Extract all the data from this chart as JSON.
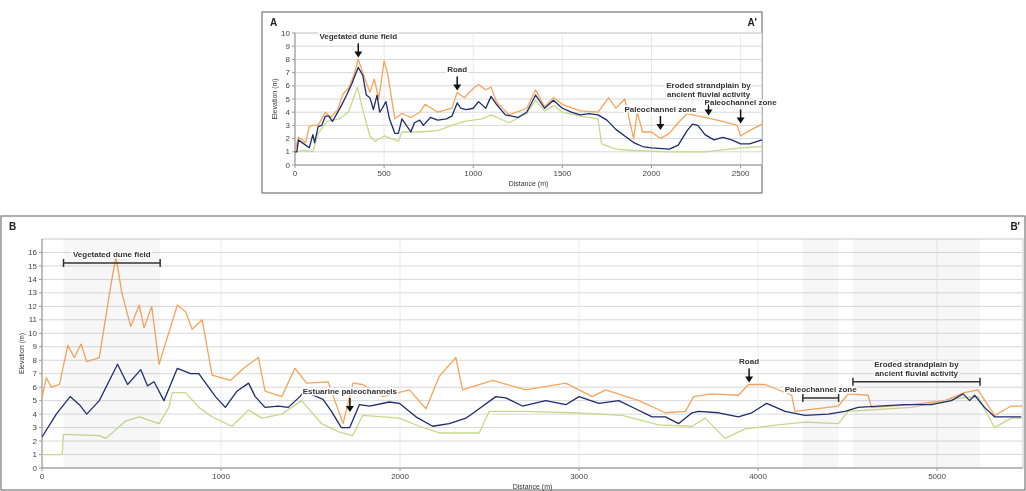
{
  "chart_data": [
    {
      "type": "line",
      "xlabel": "Distance (m)",
      "ylabel": "Elevation (m)",
      "xlim": [
        0,
        2620
      ],
      "xticks": [
        0,
        500,
        1000,
        1500,
        2000,
        2500
      ],
      "ylim": [
        0,
        10
      ],
      "yticks": [
        0,
        1,
        2,
        3,
        4,
        5,
        6,
        7,
        8,
        9,
        10
      ],
      "grid": true,
      "series": [
        {
          "color": "#f5a55a",
          "x": [
            0,
            20,
            60,
            80,
            100,
            130,
            170,
            200,
            240,
            270,
            300,
            330,
            355,
            380,
            420,
            445,
            470,
            500,
            520,
            560,
            600,
            650,
            700,
            730,
            800,
            880,
            910,
            950,
            1000,
            1030,
            1070,
            1100,
            1130,
            1200,
            1300,
            1350,
            1400,
            1450,
            1500,
            1600,
            1700,
            1760,
            1800,
            1850,
            1900,
            1920,
            1950,
            2000,
            2050,
            2100,
            2150,
            2200,
            2300,
            2400,
            2480,
            2500,
            2550,
            2620
          ],
          "values": [
            1.1,
            2.1,
            1.7,
            2.9,
            3.0,
            3.0,
            4.0,
            3.6,
            4.2,
            5.4,
            5.8,
            6.8,
            8.0,
            7.0,
            5.5,
            6.5,
            5.0,
            7.9,
            6.9,
            3.5,
            3.9,
            3.6,
            4.0,
            4.6,
            4.0,
            4.3,
            5.5,
            5.1,
            5.8,
            6.1,
            5.7,
            5.9,
            4.8,
            3.8,
            4.3,
            5.7,
            4.4,
            5.1,
            4.6,
            4.1,
            4.0,
            5.1,
            4.3,
            5.0,
            2.0,
            4.0,
            2.5,
            2.5,
            2.0,
            2.4,
            3.2,
            3.9,
            3.6,
            3.3,
            3.0,
            2.2,
            2.6,
            3.1
          ]
        },
        {
          "color": "#c5d98a",
          "x": [
            0,
            50,
            100,
            130,
            180,
            250,
            300,
            350,
            380,
            420,
            450,
            500,
            560,
            580,
            600,
            700,
            800,
            880,
            950,
            1050,
            1100,
            1200,
            1300,
            1350,
            1400,
            1450,
            1500,
            1600,
            1700,
            1720,
            1800,
            1900,
            2100,
            2300,
            2500,
            2620
          ],
          "values": [
            1.0,
            1.1,
            1.0,
            2.4,
            3.3,
            3.5,
            4.0,
            5.9,
            4.2,
            2.2,
            1.8,
            2.2,
            1.9,
            1.8,
            2.5,
            2.5,
            2.6,
            3.0,
            3.3,
            3.5,
            3.8,
            3.2,
            3.9,
            4.9,
            4.1,
            4.5,
            4.0,
            3.7,
            3.5,
            1.6,
            1.2,
            1.1,
            1.0,
            1.0,
            1.3,
            1.4
          ]
        },
        {
          "color": "#1f2a6e",
          "x": [
            0,
            10,
            20,
            50,
            80,
            100,
            110,
            130,
            150,
            170,
            190,
            210,
            240,
            260,
            290,
            320,
            355,
            380,
            400,
            420,
            440,
            460,
            475,
            490,
            510,
            530,
            560,
            580,
            600,
            625,
            650,
            670,
            700,
            720,
            760,
            800,
            850,
            880,
            910,
            930,
            960,
            1000,
            1030,
            1070,
            1100,
            1130,
            1180,
            1250,
            1300,
            1350,
            1400,
            1450,
            1500,
            1550,
            1600,
            1650,
            1700,
            1750,
            1800,
            1850,
            1900,
            1950,
            2000,
            2100,
            2150,
            2200,
            2230,
            2260,
            2300,
            2350,
            2400,
            2450,
            2500,
            2550,
            2620
          ],
          "values": [
            1.0,
            1.0,
            1.9,
            1.6,
            1.3,
            2.3,
            1.7,
            2.9,
            3.0,
            3.7,
            3.7,
            3.3,
            4.0,
            4.5,
            5.3,
            6.2,
            7.4,
            6.8,
            5.3,
            5.1,
            4.2,
            5.3,
            4.0,
            4.3,
            4.8,
            3.5,
            2.4,
            2.4,
            3.5,
            3.0,
            2.5,
            3.2,
            3.4,
            3.0,
            3.6,
            3.4,
            3.5,
            3.7,
            4.7,
            4.3,
            4.2,
            4.3,
            4.8,
            4.3,
            5.2,
            4.6,
            3.8,
            3.6,
            4.0,
            5.3,
            4.3,
            4.9,
            4.3,
            4.0,
            3.8,
            3.9,
            3.8,
            3.4,
            2.7,
            2.2,
            1.7,
            1.4,
            1.3,
            1.2,
            1.5,
            2.6,
            3.1,
            3.0,
            2.3,
            1.9,
            2.1,
            1.9,
            1.6,
            1.6,
            1.9
          ]
        }
      ],
      "annotations": [
        "A",
        "A'",
        {
          "text": "Vegetated dune field",
          "x": 355,
          "y": 8.0
        },
        {
          "text": "Road",
          "x": 910,
          "y": 5.5
        },
        {
          "text": "Paleochannel zone",
          "x": 2050,
          "y": 2.5
        },
        {
          "text": "Eroded strandplain by ancient fluvial activity",
          "x": 2320,
          "y": 3.6
        },
        {
          "text": "Paleochannel zone",
          "x": 2500,
          "y": 3.0
        }
      ]
    },
    {
      "type": "line",
      "xlabel": "Distance (m)",
      "ylabel": "Elevation (m)",
      "xlim": [
        0,
        5480
      ],
      "xticks": [
        0,
        1000,
        2000,
        3000,
        4000,
        5000
      ],
      "ylim": [
        0,
        17
      ],
      "yticks": [
        0,
        1,
        2,
        3,
        4,
        5,
        6,
        7,
        8,
        9,
        10,
        11,
        12,
        13,
        14,
        15,
        16
      ],
      "grid": true,
      "series": [
        {
          "color": "#f5a55a",
          "x": [
            0,
            24,
            52,
            98,
            144,
            181,
            218,
            250,
            320,
            385,
            413,
            446,
            496,
            543,
            570,
            613,
            654,
            756,
            802,
            839,
            895,
            950,
            1052,
            1135,
            1209,
            1246,
            1339,
            1413,
            1478,
            1598,
            1682,
            1737,
            1791,
            1903,
            2052,
            2145,
            2219,
            2312,
            2349,
            2517,
            2703,
            2926,
            3074,
            3148,
            3334,
            3482,
            3594,
            3640,
            3742,
            3890,
            3946,
            4039,
            4188,
            4206,
            4448,
            4504,
            4615,
            4634,
            4857,
            5043,
            5154,
            5228,
            5321,
            5414,
            5479
          ],
          "values": [
            5.2,
            6.7,
            6.0,
            6.2,
            9.1,
            8.2,
            9.2,
            7.9,
            8.2,
            13.6,
            15.7,
            13.0,
            10.5,
            12.1,
            10.4,
            12.0,
            7.7,
            12.1,
            11.6,
            10.3,
            11.0,
            6.9,
            6.5,
            7.5,
            8.2,
            5.7,
            5.3,
            7.4,
            6.3,
            6.4,
            3.3,
            6.3,
            6.2,
            5.3,
            5.8,
            4.4,
            6.8,
            8.2,
            5.8,
            6.5,
            5.8,
            6.3,
            5.3,
            5.8,
            5.0,
            4.1,
            4.2,
            5.3,
            5.5,
            5.4,
            6.2,
            6.2,
            5.4,
            4.2,
            4.6,
            5.5,
            5.4,
            4.5,
            4.7,
            5.0,
            5.6,
            5.8,
            3.9,
            4.6,
            4.6
          ]
        },
        {
          "color": "#c5d98a",
          "x": [
            0,
            113,
            120,
            320,
            357,
            469,
            543,
            654,
            709,
            728,
            802,
            876,
            950,
            1061,
            1154,
            1228,
            1339,
            1450,
            1561,
            1654,
            1735,
            1791,
            1996,
            2108,
            2219,
            2442,
            2498,
            2703,
            2963,
            3241,
            3445,
            3631,
            3705,
            3816,
            3928,
            4113,
            4262,
            4448,
            4504,
            4857,
            5136,
            5228,
            5321,
            5414,
            5479
          ],
          "values": [
            1.0,
            1.0,
            2.5,
            2.4,
            2.2,
            3.5,
            3.8,
            3.3,
            4.5,
            5.6,
            5.6,
            4.5,
            3.8,
            3.1,
            4.3,
            3.7,
            4.0,
            5.0,
            3.3,
            2.7,
            2.4,
            3.9,
            3.7,
            3.1,
            2.6,
            2.6,
            4.2,
            4.2,
            4.1,
            3.9,
            3.2,
            3.1,
            3.7,
            2.2,
            2.9,
            3.2,
            3.4,
            3.3,
            4.2,
            4.5,
            5.2,
            5.3,
            3.0,
            3.7,
            3.7
          ]
        },
        {
          "color": "#1f2a6e",
          "x": [
            0,
            80,
            157,
            209,
            250,
            320,
            422,
            478,
            552,
            589,
            626,
            681,
            756,
            830,
            876,
            969,
            1024,
            1089,
            1154,
            1191,
            1246,
            1320,
            1376,
            1441,
            1469,
            1515,
            1570,
            1617,
            1672,
            1719,
            1773,
            1829,
            1940,
            1996,
            2089,
            2182,
            2275,
            2368,
            2442,
            2535,
            2591,
            2684,
            2814,
            2926,
            3000,
            3111,
            3222,
            3315,
            3408,
            3482,
            3557,
            3631,
            3667,
            3779,
            3890,
            3965,
            4048,
            4151,
            4262,
            4392,
            4485,
            4559,
            4671,
            4819,
            4968,
            5080,
            5145,
            5182,
            5210,
            5265,
            5321,
            5470
          ],
          "values": [
            2.3,
            4.0,
            5.3,
            4.7,
            4.0,
            5.0,
            7.7,
            6.2,
            7.3,
            6.1,
            6.4,
            5.0,
            7.4,
            7.0,
            7.0,
            5.3,
            4.5,
            5.7,
            6.3,
            5.3,
            4.5,
            4.6,
            4.5,
            5.3,
            5.8,
            5.4,
            5.1,
            4.2,
            3.0,
            3.0,
            4.7,
            4.6,
            4.9,
            4.8,
            3.8,
            3.1,
            3.3,
            3.7,
            4.4,
            5.3,
            5.2,
            4.6,
            5.0,
            4.7,
            5.3,
            4.8,
            5.0,
            4.4,
            3.8,
            3.8,
            3.3,
            4.1,
            4.2,
            4.1,
            3.8,
            4.1,
            4.8,
            4.2,
            3.9,
            4.0,
            4.2,
            4.5,
            4.6,
            4.7,
            4.7,
            5.0,
            5.5,
            5.0,
            5.4,
            4.5,
            3.8,
            3.8
          ]
        }
      ],
      "bands": [
        {
          "axis": "x",
          "from": 120,
          "to": 660,
          "label": "Vegetated dune field"
        },
        {
          "axis": "x",
          "from": 4250,
          "to": 4450,
          "label": "Paleochannel zone"
        },
        {
          "axis": "x",
          "from": 4530,
          "to": 5240,
          "label": "Eroded strandplain by ancient fluvial activity"
        }
      ],
      "annotations": [
        "B",
        "B'",
        {
          "text": "Estuarine paleochannels",
          "x": 1720,
          "y": 4.0
        },
        {
          "text": "Road",
          "x": 3950,
          "y": 6.2
        }
      ]
    }
  ]
}
